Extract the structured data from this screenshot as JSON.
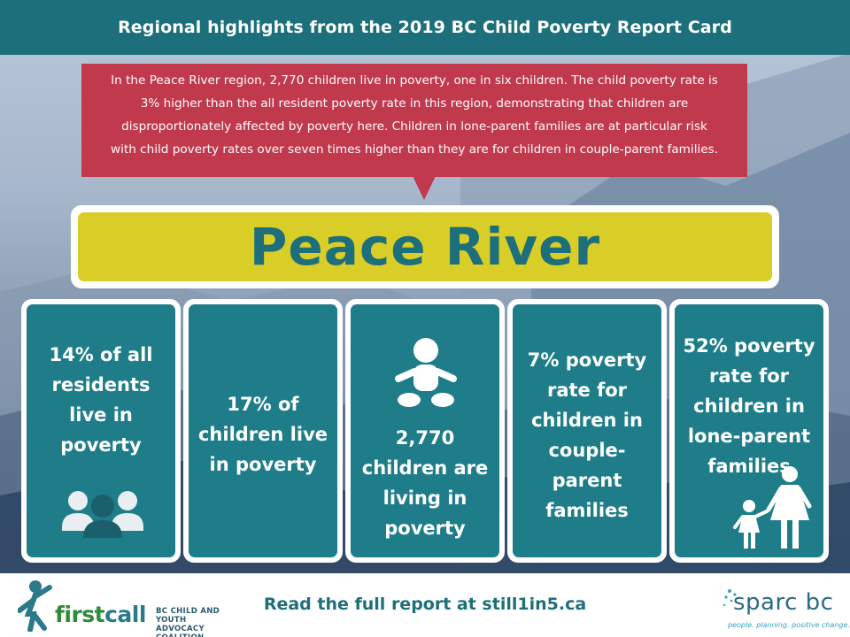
{
  "header": {
    "title": "Regional highlights from the 2019 BC Child Poverty Report Card"
  },
  "callout": {
    "lines": [
      "In the Peace River region, 2,770 children live in poverty, one in six children. The child poverty rate is",
      "3% higher than the all resident poverty rate in this region, demonstrating that children are",
      "disproportionately affected by poverty here. Children in lone-parent families are at particular risk",
      "with child poverty rates over seven times higher than they are for children in couple-parent families."
    ]
  },
  "region": {
    "name": "Peace River"
  },
  "cards": [
    {
      "lines": [
        "14% of all",
        "residents",
        "live in",
        "poverty"
      ],
      "icon": "people-group-icon"
    },
    {
      "lines": [
        "17% of",
        "children live",
        "in poverty"
      ],
      "icon": ""
    },
    {
      "lines": [
        "2,770",
        "children are",
        "living in",
        "poverty"
      ],
      "icon": "baby-icon"
    },
    {
      "lines": [
        "7% poverty",
        "rate for",
        "children in",
        "couple-",
        "parent",
        "families"
      ],
      "icon": ""
    },
    {
      "lines": [
        "52% poverty",
        "rate for",
        "children in",
        "lone-parent",
        "families"
      ],
      "icon": "mother-child-icon"
    }
  ],
  "footer": {
    "read_more": "Read the full report at still1in5.ca",
    "firstcall": {
      "word_a": "first",
      "word_b": "call",
      "sub_1": "BC CHILD AND YOUTH",
      "sub_2": "ADVOCACY COALITION"
    },
    "sparc": {
      "word": "sparc bc",
      "tagline": "people. planning. positive change."
    }
  },
  "colors": {
    "teal_bar": "#1c6f7b",
    "card_teal": "#1f7d8a",
    "callout_red": "#c0394d",
    "region_yellow": "#d9cd28"
  }
}
